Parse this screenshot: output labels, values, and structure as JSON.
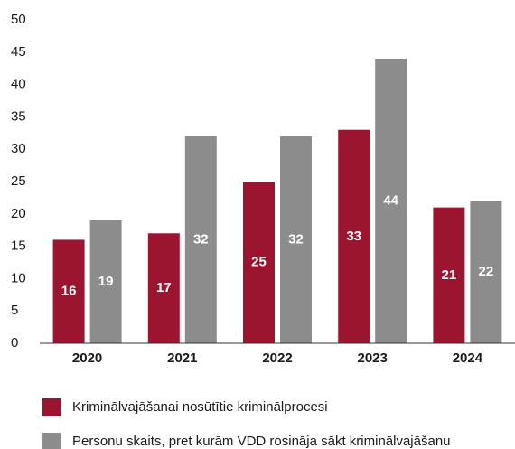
{
  "chart_data": {
    "type": "bar",
    "categories": [
      "2020",
      "2021",
      "2022",
      "2023",
      "2024"
    ],
    "series": [
      {
        "name": "Kriminālvajāšanai nosūtītie kriminālprocesi",
        "color": "#9b1530",
        "values": [
          16,
          17,
          25,
          33,
          21
        ]
      },
      {
        "name": "Personu skaits, pret kurām VDD rosināja sākt kriminālvajāšanu",
        "color": "#8c8c8c",
        "values": [
          19,
          32,
          32,
          44,
          22
        ]
      }
    ],
    "ylim": [
      0,
      50
    ],
    "yticks": [
      0,
      5,
      10,
      15,
      20,
      25,
      30,
      35,
      40,
      45,
      50
    ],
    "grid": false
  }
}
